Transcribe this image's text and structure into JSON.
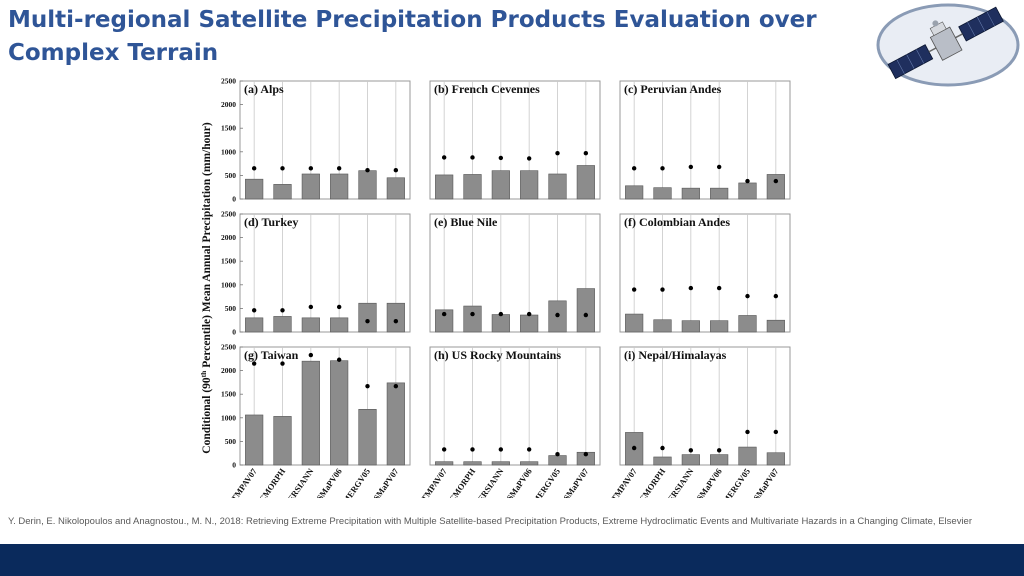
{
  "slide": {
    "title": "Multi-regional Satellite Precipitation Products Evaluation over Complex Terrain",
    "citation": "Y. Derin, E. Nikolopoulos and Anagnostou., M. N., 2018: Retrieving Extreme Precipitation with Multiple Satellite-based Precipitation Products, Extreme Hydroclimatic Events and Multivariate Hazards in a Changing Climate, Elsevier",
    "footer_color": "#0a2a5c",
    "title_color": "#2f5597",
    "logo": "satellite-image"
  },
  "chart_data": {
    "type": "bar",
    "ylabel_parts": [
      "Conditional (90",
      "th",
      " Percentile) Mean Annual Precipitation (mm/hour)"
    ],
    "categories": [
      "TMPAV07",
      "CMORPH",
      "PERSIANN",
      "GSMaPV06",
      "IMERGV05",
      "GSMaPV07"
    ],
    "ylim": [
      0,
      2500
    ],
    "yticks": [
      0,
      500,
      1000,
      1500,
      2000,
      2500
    ],
    "bar_color": "#8c8c8c",
    "marker_color": "#000000",
    "panels": [
      {
        "title": "(a) Alps",
        "bars": [
          420,
          310,
          530,
          530,
          600,
          450
        ],
        "markers": [
          650,
          650,
          650,
          650,
          610,
          610
        ]
      },
      {
        "title": "(b) French Cevennes",
        "bars": [
          510,
          520,
          600,
          600,
          530,
          710
        ],
        "markers": [
          880,
          880,
          870,
          860,
          970,
          970
        ]
      },
      {
        "title": "(c) Peruvian Andes",
        "bars": [
          280,
          240,
          230,
          230,
          340,
          520
        ],
        "markers": [
          650,
          650,
          680,
          680,
          380,
          380
        ]
      },
      {
        "title": "(d) Turkey",
        "bars": [
          300,
          330,
          300,
          300,
          610,
          610
        ],
        "markers": [
          460,
          460,
          530,
          530,
          230,
          230
        ]
      },
      {
        "title": "(e) Blue Nile",
        "bars": [
          470,
          550,
          370,
          360,
          660,
          920
        ],
        "markers": [
          380,
          380,
          380,
          380,
          360,
          360
        ]
      },
      {
        "title": "(f) Colombian Andes",
        "bars": [
          380,
          260,
          240,
          240,
          350,
          250
        ],
        "markers": [
          900,
          900,
          930,
          930,
          760,
          760
        ]
      },
      {
        "title": "(g) Taiwan",
        "bars": [
          1060,
          1030,
          2200,
          2210,
          1180,
          1740
        ],
        "markers": [
          2150,
          2150,
          2330,
          2230,
          1670,
          1670
        ]
      },
      {
        "title": "(h) US Rocky Mountains",
        "bars": [
          70,
          70,
          70,
          70,
          200,
          270
        ],
        "markers": [
          330,
          330,
          330,
          330,
          230,
          230
        ]
      },
      {
        "title": "(i) Nepal/Himalayas",
        "bars": [
          690,
          170,
          220,
          220,
          380,
          260
        ],
        "markers": [
          360,
          360,
          310,
          310,
          700,
          700
        ]
      }
    ]
  }
}
